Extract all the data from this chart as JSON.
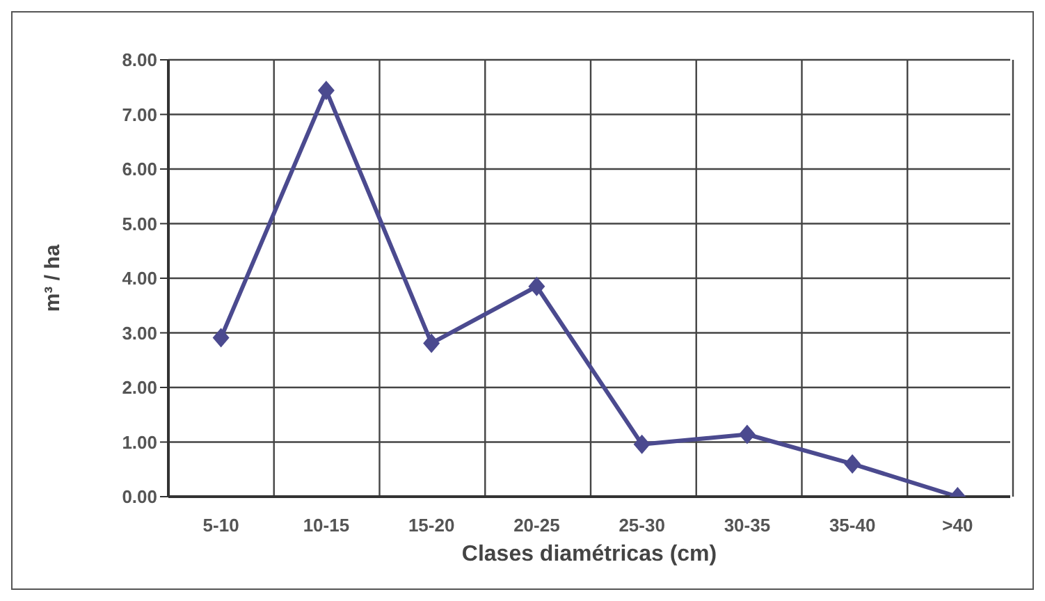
{
  "chart_data": {
    "type": "line",
    "xlabel": "Clases diamétricas (cm)",
    "ylabel": "m³ / ha",
    "categories": [
      "5-10",
      "10-15",
      "15-20",
      "20-25",
      "25-30",
      "30-35",
      "35-40",
      ">40"
    ],
    "series": [
      {
        "color": "#4b4a8f",
        "values": [
          2.91,
          7.44,
          2.81,
          3.85,
          0.96,
          1.14,
          0.6,
          0
        ]
      }
    ],
    "ylim": [
      0,
      8
    ],
    "yticks": [
      {
        "value": 0,
        "label": "0.00"
      },
      {
        "value": 1,
        "label": "1.00"
      },
      {
        "value": 2,
        "label": "2.00"
      },
      {
        "value": 3,
        "label": "3.00"
      },
      {
        "value": 4,
        "label": "4.00"
      },
      {
        "value": 5,
        "label": "5.00"
      },
      {
        "value": 6,
        "label": "6.00"
      },
      {
        "value": 7,
        "label": "7.00"
      },
      {
        "value": 8,
        "label": "8.00"
      }
    ],
    "grid": true,
    "marker": "diamond",
    "line_style": "solid",
    "legend": false
  }
}
